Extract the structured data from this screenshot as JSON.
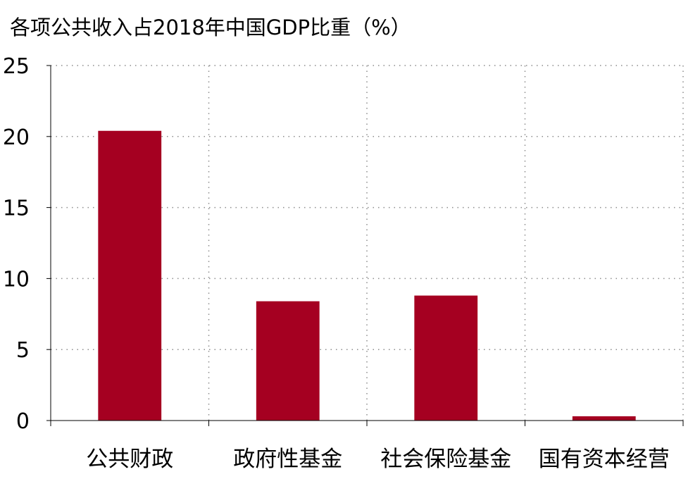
{
  "chart_data": {
    "type": "bar",
    "title": "各项公共收入占2018年中国GDP比重（%）",
    "categories": [
      "公共财政",
      "政府性基金",
      "社会保险基金",
      "国有资本经营"
    ],
    "values": [
      20.4,
      8.4,
      8.8,
      0.3
    ],
    "xlabel": "",
    "ylabel": "",
    "ylim": [
      0,
      25
    ],
    "yticks": [
      0,
      5,
      10,
      15,
      20,
      25
    ],
    "grid": true,
    "legend": "none",
    "bar_color": "#A50021"
  }
}
